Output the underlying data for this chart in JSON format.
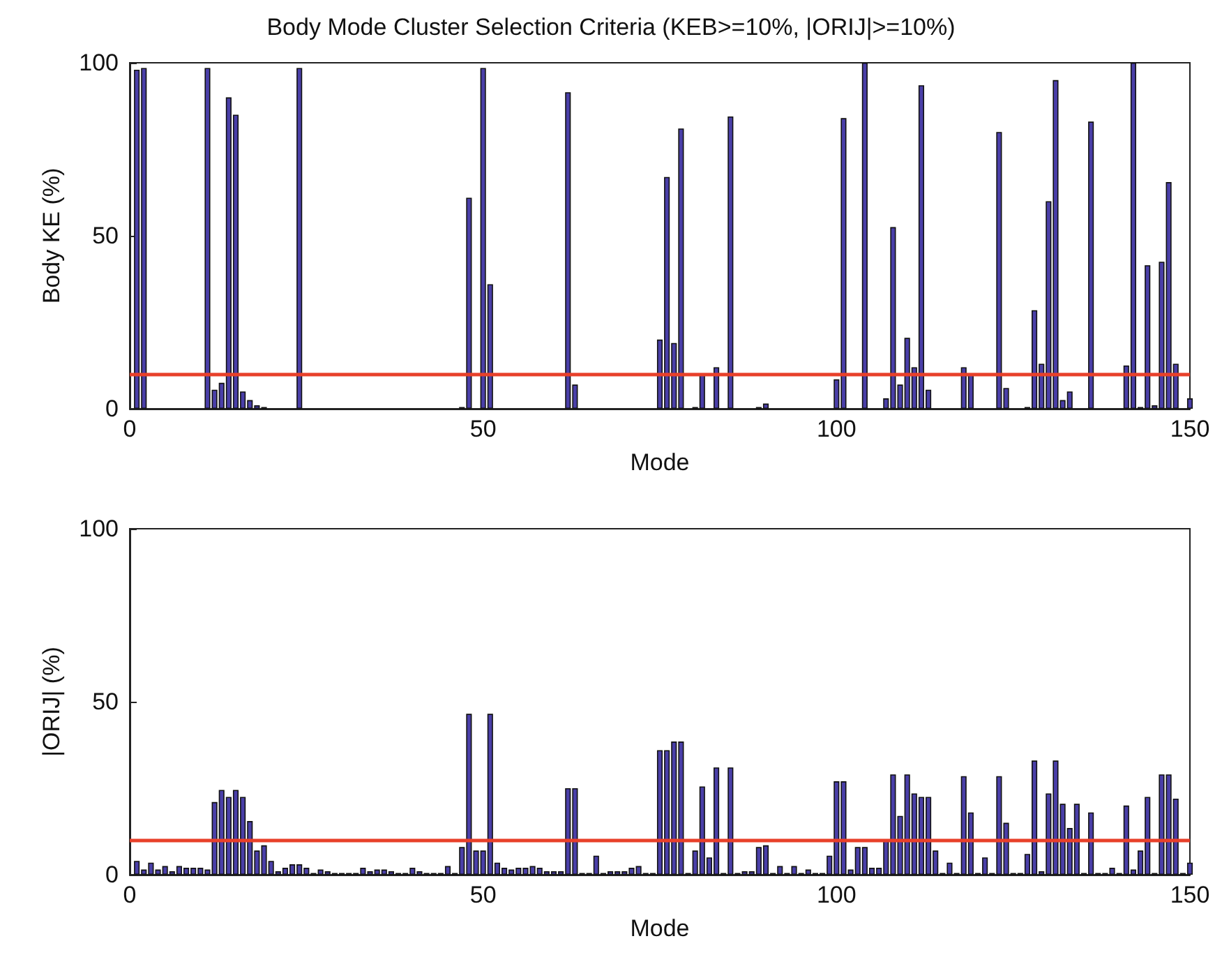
{
  "chart_data": [
    {
      "type": "bar",
      "title": "Body Mode Cluster Selection Criteria (KEB>=10%, |ORIJ|>=10%)",
      "xlabel": "Mode",
      "ylabel": "Body KE (%)",
      "color": "#4a3fa8",
      "x": [
        1,
        2,
        3,
        4,
        5,
        6,
        7,
        8,
        9,
        10,
        11,
        12,
        13,
        14,
        15,
        16,
        17,
        18,
        19,
        20,
        21,
        22,
        23,
        24,
        25,
        26,
        27,
        28,
        29,
        30,
        31,
        32,
        33,
        34,
        35,
        36,
        37,
        38,
        39,
        40,
        41,
        42,
        43,
        44,
        45,
        46,
        47,
        48,
        49,
        50,
        51,
        52,
        53,
        54,
        55,
        56,
        57,
        58,
        59,
        60,
        61,
        62,
        63,
        64,
        65,
        66,
        67,
        68,
        69,
        70,
        71,
        72,
        73,
        74,
        75,
        76,
        77,
        78,
        79,
        80,
        81,
        82,
        83,
        84,
        85,
        86,
        87,
        88,
        89,
        90,
        91,
        92,
        93,
        94,
        95,
        96,
        97,
        98,
        99,
        100,
        101,
        102,
        103,
        104,
        105,
        106,
        107,
        108,
        109,
        110,
        111,
        112,
        113,
        114,
        115,
        116,
        117,
        118,
        119,
        120,
        121,
        122,
        123,
        124,
        125,
        126,
        127,
        128,
        129,
        130,
        131,
        132,
        133,
        134,
        135,
        136,
        137,
        138,
        139,
        140,
        141,
        142,
        143,
        144,
        145,
        146,
        147,
        148,
        149,
        150
      ],
      "values": [
        98,
        98.5,
        0,
        0,
        0,
        0,
        0,
        0,
        0,
        0,
        98.5,
        5.5,
        7.5,
        90,
        85,
        5,
        2.5,
        1,
        0.5,
        0,
        0,
        0,
        0,
        98.5,
        0,
        0,
        0,
        0,
        0,
        0,
        0,
        0,
        0,
        0,
        0,
        0,
        0,
        0,
        0,
        0,
        0,
        0,
        0,
        0,
        0,
        0,
        0.5,
        61,
        0,
        98.5,
        36,
        0,
        0,
        0,
        0,
        0,
        0,
        0,
        0,
        0,
        0,
        91.5,
        7,
        0,
        0,
        0,
        0,
        0,
        0,
        0,
        0,
        0,
        0,
        0,
        20,
        67,
        19,
        81,
        0,
        0.5,
        10,
        0,
        12,
        0,
        84.5,
        0,
        0,
        0,
        0.5,
        1.5,
        0,
        0,
        0,
        0,
        0,
        0,
        0,
        0,
        0,
        8.5,
        84,
        0,
        0,
        100,
        0,
        0,
        3,
        52.5,
        7,
        20.5,
        12,
        93.5,
        5.5,
        0,
        0,
        0,
        0,
        12,
        10,
        0,
        0,
        0,
        80,
        6,
        0,
        0,
        0.5,
        28.5,
        13,
        60,
        95,
        2.5,
        5,
        0,
        0,
        83,
        0,
        0,
        0,
        0,
        12.5,
        100,
        0.5,
        41.5,
        1,
        42.5,
        65.5,
        13,
        0,
        3
      ],
      "xlim": [
        0,
        150
      ],
      "xticks": [
        0,
        50,
        100,
        150
      ],
      "ylim": [
        0,
        100
      ],
      "yticks": [
        0,
        50,
        100
      ],
      "ref_lines": [
        {
          "axis": "y",
          "value": 10,
          "color": "#e8402a"
        }
      ]
    },
    {
      "type": "bar",
      "xlabel": "Mode",
      "ylabel": "|ORIJ| (%)",
      "color": "#4a3fa8",
      "x": [
        1,
        2,
        3,
        4,
        5,
        6,
        7,
        8,
        9,
        10,
        11,
        12,
        13,
        14,
        15,
        16,
        17,
        18,
        19,
        20,
        21,
        22,
        23,
        24,
        25,
        26,
        27,
        28,
        29,
        30,
        31,
        32,
        33,
        34,
        35,
        36,
        37,
        38,
        39,
        40,
        41,
        42,
        43,
        44,
        45,
        46,
        47,
        48,
        49,
        50,
        51,
        52,
        53,
        54,
        55,
        56,
        57,
        58,
        59,
        60,
        61,
        62,
        63,
        64,
        65,
        66,
        67,
        68,
        69,
        70,
        71,
        72,
        73,
        74,
        75,
        76,
        77,
        78,
        79,
        80,
        81,
        82,
        83,
        84,
        85,
        86,
        87,
        88,
        89,
        90,
        91,
        92,
        93,
        94,
        95,
        96,
        97,
        98,
        99,
        100,
        101,
        102,
        103,
        104,
        105,
        106,
        107,
        108,
        109,
        110,
        111,
        112,
        113,
        114,
        115,
        116,
        117,
        118,
        119,
        120,
        121,
        122,
        123,
        124,
        125,
        126,
        127,
        128,
        129,
        130,
        131,
        132,
        133,
        134,
        135,
        136,
        137,
        138,
        139,
        140,
        141,
        142,
        143,
        144,
        145,
        146,
        147,
        148,
        149,
        150
      ],
      "values": [
        4,
        1.5,
        3.5,
        1.5,
        2.5,
        1,
        2.5,
        2,
        2,
        2,
        1.5,
        21,
        24.5,
        22.5,
        24.5,
        22.5,
        15.5,
        7,
        8.5,
        4,
        1,
        2,
        3,
        3,
        2,
        0.5,
        1.5,
        1,
        0.5,
        0.5,
        0.5,
        0.5,
        2,
        1,
        1.5,
        1.5,
        1,
        0.5,
        0.5,
        2,
        1,
        0.5,
        0.5,
        0.5,
        2.5,
        0.5,
        8,
        46.5,
        7,
        7,
        46.5,
        3.5,
        2,
        1.5,
        2,
        2,
        2.5,
        2,
        1,
        1,
        1,
        25,
        25,
        0.5,
        0.5,
        5.5,
        0.5,
        1,
        1,
        1,
        2,
        2.5,
        0.5,
        0.5,
        36,
        36,
        38.5,
        38.5,
        0.5,
        7,
        25.5,
        5,
        31,
        0.5,
        31,
        0.5,
        1,
        1,
        8,
        8.5,
        0.5,
        2.5,
        0.5,
        2.5,
        0.5,
        1.5,
        0.5,
        0.5,
        5.5,
        27,
        27,
        1.5,
        8,
        8,
        2,
        2,
        10,
        29,
        17,
        29,
        23.5,
        22.5,
        22.5,
        7,
        0.5,
        3.5,
        0.5,
        28.5,
        18,
        0.5,
        5,
        0.5,
        28.5,
        15,
        0.5,
        0.5,
        6,
        33,
        1,
        23.5,
        33,
        20.5,
        13.5,
        20.5,
        0.5,
        18,
        0.5,
        0.5,
        2,
        0.5,
        20,
        1.5,
        7,
        22.5,
        0.5,
        29,
        29,
        22,
        0.5,
        3.5
      ],
      "xlim": [
        0,
        150
      ],
      "xticks": [
        0,
        50,
        100,
        150
      ],
      "ylim": [
        0,
        100
      ],
      "yticks": [
        0,
        50,
        100
      ],
      "ref_lines": [
        {
          "axis": "y",
          "value": 10,
          "color": "#e8402a"
        }
      ]
    }
  ]
}
